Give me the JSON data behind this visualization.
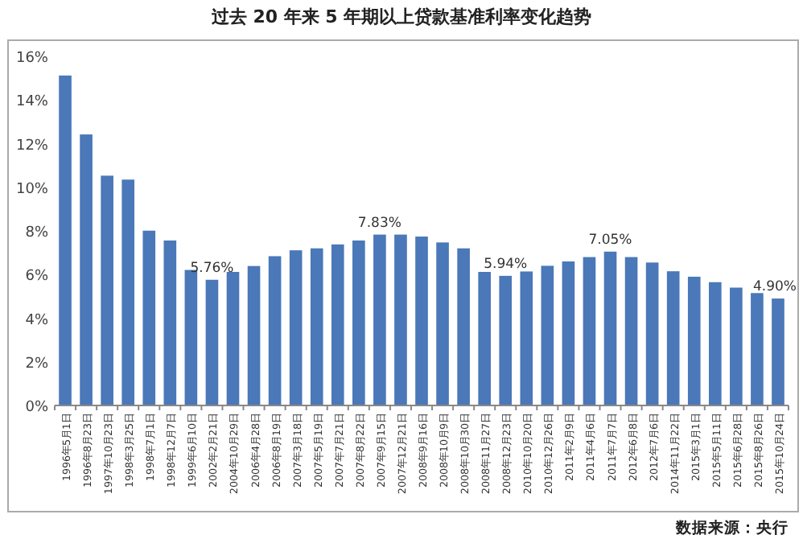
{
  "chart_data": {
    "type": "bar",
    "title": "过去 20 年来 5 年期以上贷款基准利率变化趋势",
    "categories": [
      "1996年5月1日",
      "1996年8月23日",
      "1997年10月23日",
      "1998年3月25日",
      "1998年7月1日",
      "1998年12月7日",
      "1999年6月10日",
      "2002年2月21日",
      "2004年10月29日",
      "2006年4月28日",
      "2006年8月19日",
      "2007年3月18日",
      "2007年5月19日",
      "2007年7月21日",
      "2007年8月22日",
      "2007年9月15日",
      "2007年12月21日",
      "2008年9月16日",
      "2008年10月9日",
      "2008年10月30日",
      "2008年11月27日",
      "2008年12月23日",
      "2010年10月20日",
      "2010年12月26日",
      "2011年2月9日",
      "2011年4月6日",
      "2011年7月7日",
      "2012年6月8日",
      "2012年7月6日",
      "2014年11月22日",
      "2015年3月1日",
      "2015年5月11日",
      "2015年6月28日",
      "2015年8月26日",
      "2015年10月24日"
    ],
    "values": [
      15.12,
      12.42,
      10.53,
      10.35,
      8.01,
      7.56,
      6.21,
      5.76,
      6.12,
      6.39,
      6.84,
      7.11,
      7.2,
      7.38,
      7.56,
      7.83,
      7.83,
      7.74,
      7.47,
      7.2,
      6.12,
      5.94,
      6.14,
      6.4,
      6.6,
      6.8,
      7.05,
      6.8,
      6.55,
      6.15,
      5.9,
      5.65,
      5.4,
      5.15,
      4.9
    ],
    "value_labels": [
      null,
      null,
      null,
      null,
      null,
      null,
      null,
      "5.76%",
      null,
      null,
      null,
      null,
      null,
      null,
      null,
      "7.83%",
      null,
      null,
      null,
      null,
      null,
      "5.94%",
      null,
      null,
      null,
      null,
      "7.05%",
      null,
      null,
      null,
      null,
      null,
      null,
      null,
      "4.90%"
    ],
    "color": "#4a78b8",
    "ylim": [
      0,
      16
    ],
    "yticks": [
      {
        "value": 0,
        "label": "0%"
      },
      {
        "value": 2,
        "label": "2%"
      },
      {
        "value": 4,
        "label": "4%"
      },
      {
        "value": 6,
        "label": "6%"
      },
      {
        "value": 8,
        "label": "8%"
      },
      {
        "value": 10,
        "label": "10%"
      },
      {
        "value": 12,
        "label": "12%"
      },
      {
        "value": 14,
        "label": "14%"
      },
      {
        "value": 16,
        "label": "16%"
      }
    ],
    "annotations": [
      "数据来源：央行"
    ]
  }
}
